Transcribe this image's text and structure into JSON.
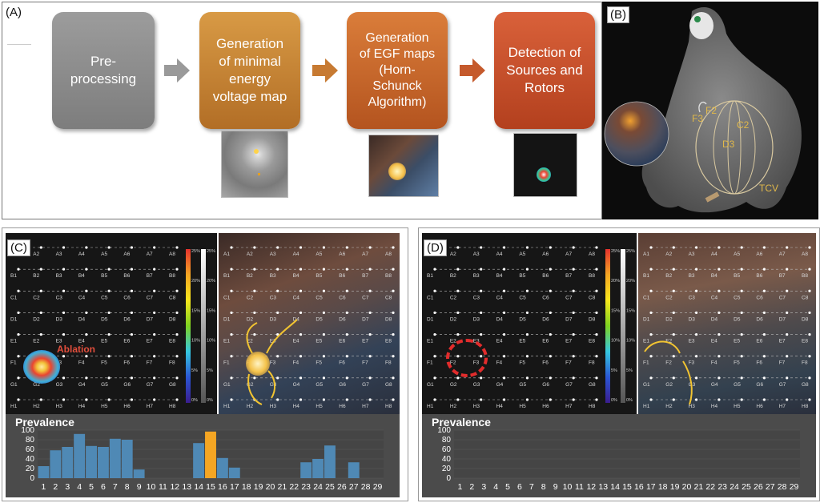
{
  "panels": {
    "a": {
      "label": "(A)"
    },
    "b": {
      "label": "(B)"
    },
    "c": {
      "label": "(C)"
    },
    "d": {
      "label": "(D)"
    }
  },
  "pipeline": {
    "steps": [
      {
        "text": "Pre-\nprocessing",
        "color": "#8e8e8e"
      },
      {
        "text": "Generation\nof minimal\nenergy\nvoltage map",
        "color": "#c8822e"
      },
      {
        "text": "Generation\nof EGF maps\n(Horn-\nSchunck\nAlgorithm)",
        "color": "#cc6a2d"
      },
      {
        "text": "Detection of\nSources and\nRotors",
        "color": "#c8502a"
      }
    ]
  },
  "anatomy_labels": {
    "f3": "F3",
    "f2": "F2",
    "c2": "C2",
    "d3": "D3",
    "tcv": "TCV"
  },
  "grid": {
    "rows": [
      "A",
      "B",
      "C",
      "D",
      "E",
      "F",
      "G",
      "H"
    ],
    "cols": [
      "1",
      "2",
      "3",
      "4",
      "5",
      "6",
      "7",
      "8"
    ]
  },
  "colorbar": {
    "rainbow_ticks": [
      "25%",
      "20%",
      "15%",
      "10%",
      "5%",
      "0%"
    ],
    "gray_ticks": [
      "25%",
      "20%",
      "15%",
      "10%",
      "5%",
      "0%"
    ]
  },
  "annotation": {
    "ablation": "Ablation"
  },
  "chart_data": [
    {
      "type": "bar",
      "title": "Prevalence",
      "categories": [
        "1",
        "2",
        "3",
        "4",
        "5",
        "6",
        "7",
        "8",
        "9",
        "10",
        "11",
        "12",
        "13",
        "14",
        "15",
        "16",
        "17",
        "18",
        "19",
        "20",
        "21",
        "22",
        "23",
        "24",
        "25",
        "26",
        "27",
        "28",
        "29"
      ],
      "values": [
        25,
        58,
        65,
        92,
        67,
        65,
        82,
        80,
        18,
        0,
        0,
        0,
        0,
        73,
        97,
        42,
        22,
        0,
        0,
        0,
        0,
        0,
        33,
        40,
        68,
        0,
        33,
        0,
        0
      ],
      "highlight_index": 14,
      "highlight_color": "#f5a623",
      "bar_color": "#4f89b5",
      "ylim": [
        0,
        100
      ],
      "yticks": [
        "0",
        "20",
        "40",
        "60",
        "80",
        "100"
      ]
    },
    {
      "type": "bar",
      "title": "Prevalence",
      "categories": [
        "1",
        "2",
        "3",
        "4",
        "5",
        "6",
        "7",
        "8",
        "9",
        "10",
        "11",
        "12",
        "13",
        "14",
        "15",
        "16",
        "17",
        "18",
        "19",
        "20",
        "21",
        "22",
        "23",
        "24",
        "25",
        "26",
        "27",
        "28",
        "29"
      ],
      "values": [
        0,
        0,
        0,
        0,
        0,
        0,
        0,
        0,
        0,
        0,
        0,
        0,
        0,
        0,
        0,
        0,
        0,
        0,
        0,
        0,
        0,
        0,
        0,
        0,
        0,
        0,
        0,
        0,
        0
      ],
      "bar_color": "#4f89b5",
      "ylim": [
        0,
        100
      ],
      "yticks": [
        "0",
        "20",
        "40",
        "60",
        "80",
        "100"
      ]
    }
  ]
}
